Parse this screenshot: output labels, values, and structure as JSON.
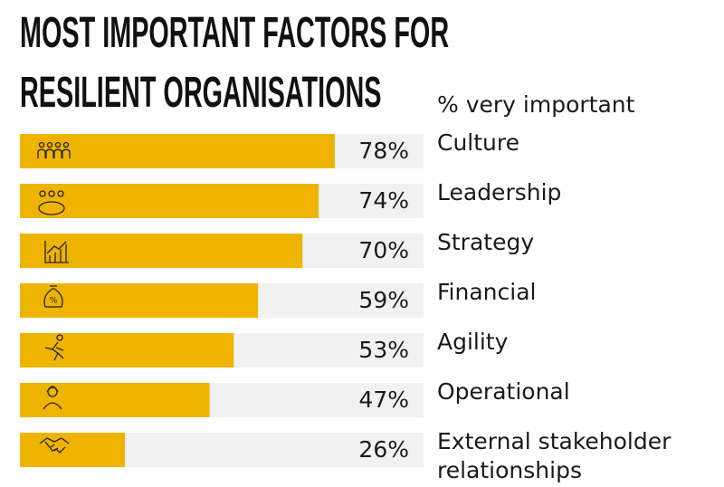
{
  "chart_data": {
    "type": "bar",
    "orientation": "horizontal",
    "title": "MOST IMPORTANT FACTORS FOR RESILIENT ORGANISATIONS",
    "subtitle": "% very important",
    "categories": [
      "Culture",
      "Leadership",
      "Strategy",
      "Financial",
      "Agility",
      "Operational",
      "External stakeholder relationships"
    ],
    "values": [
      78,
      74,
      70,
      59,
      53,
      47,
      26
    ],
    "value_labels": [
      "78%",
      "74%",
      "70%",
      "59%",
      "53%",
      "47%",
      "26%"
    ],
    "color": "#efb400",
    "track_color": "#f1f1f1",
    "xlim": [
      0,
      100
    ]
  }
}
